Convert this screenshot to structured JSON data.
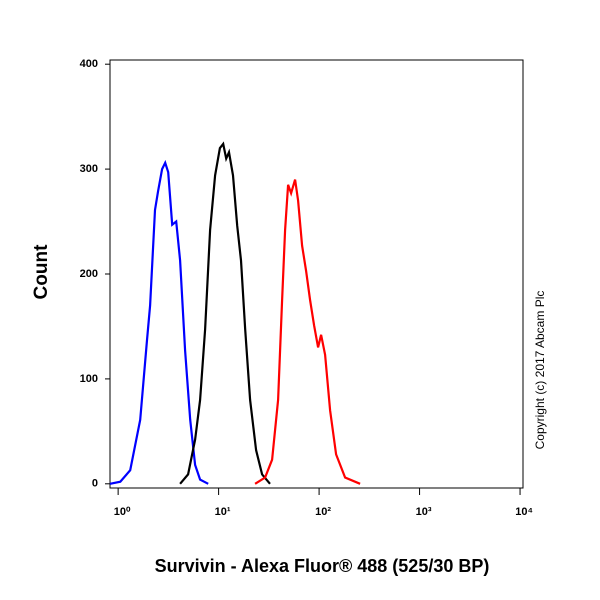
{
  "chart_data": {
    "type": "line",
    "xlabel": "Survivin - Alexa Fluor® 488 (525/30 BP)",
    "ylabel": "Count",
    "annotation": "Copyright (c) 2017 Abcam Plc",
    "xscale": "log",
    "xlim": [
      0.83,
      10700
    ],
    "ylim": [
      -4,
      404
    ],
    "xticks": [
      {
        "value": 1,
        "label": "10⁰"
      },
      {
        "value": 10,
        "label": "10¹"
      },
      {
        "value": 100,
        "label": "10²"
      },
      {
        "value": 1000,
        "label": "10³"
      },
      {
        "value": 10000,
        "label": "10⁴"
      }
    ],
    "yticks": [
      0,
      100,
      200,
      300,
      400
    ],
    "series": [
      {
        "color": "#0000ff",
        "x": [
          0.83,
          1.05,
          1.32,
          1.66,
          1.94,
          2.08,
          2.33,
          2.5,
          2.74,
          2.94,
          3.15,
          3.45,
          3.78,
          4.14,
          4.64,
          5.21,
          5.84,
          6.55,
          7.87
        ],
        "values": [
          0,
          2,
          13,
          61,
          137,
          170,
          261,
          279,
          300,
          306,
          297,
          247,
          250,
          213,
          127,
          61,
          18,
          4,
          0
        ]
      },
      {
        "color": "#000000",
        "x": [
          4.14,
          4.97,
          5.84,
          6.55,
          7.34,
          8.23,
          9.23,
          10.3,
          11.1,
          11.9,
          12.7,
          13.9,
          15.3,
          16.7,
          18.4,
          20.6,
          23.6,
          27.1,
          32.5
        ],
        "values": [
          0,
          9,
          42,
          80,
          147,
          242,
          294,
          320,
          324,
          310,
          316,
          294,
          246,
          213,
          147,
          80,
          32,
          9,
          0
        ]
      },
      {
        "color": "#ff0000",
        "x": [
          23.1,
          29.0,
          34.1,
          39.1,
          42.8,
          45.9,
          49.2,
          52.6,
          57.7,
          61.8,
          67.8,
          74.3,
          81.3,
          89.2,
          97.7,
          104.7,
          114.8,
          128.6,
          147.6,
          181.5,
          255.9
        ],
        "values": [
          0,
          6,
          23,
          80,
          175,
          242,
          285,
          277,
          290,
          270,
          227,
          203,
          175,
          151,
          130,
          142,
          123,
          70,
          28,
          6,
          0
        ]
      }
    ]
  }
}
